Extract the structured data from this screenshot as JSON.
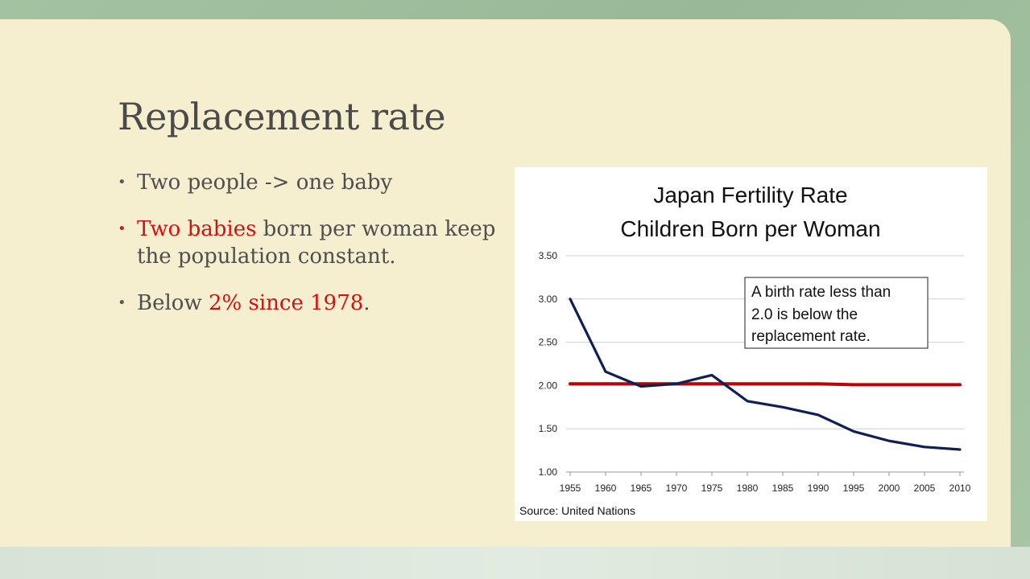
{
  "slide": {
    "title": "Replacement rate",
    "bullets": [
      {
        "parts": [
          {
            "text": "Two people -> one baby"
          }
        ]
      },
      {
        "parts": [
          {
            "text": "Two babies",
            "highlight": true
          },
          {
            "text": " born per woman keep the population constant."
          }
        ]
      },
      {
        "parts": [
          {
            "text": "Below "
          },
          {
            "text": "2% since 1978",
            "highlight": true
          },
          {
            "text": "."
          }
        ]
      }
    ],
    "highlight_color": "#d60f0f"
  },
  "chart_data": {
    "type": "line",
    "title_lines": [
      "Japan Fertility Rate",
      "Children Born per Woman"
    ],
    "x": [
      1955,
      1960,
      1965,
      1970,
      1975,
      1980,
      1985,
      1990,
      1995,
      2000,
      2005,
      2010
    ],
    "x_tick_labels": [
      "1955",
      "1960",
      "1965",
      "1970",
      "1975",
      "1980",
      "1985",
      "1990",
      "1995",
      "2000",
      "2005",
      "2010"
    ],
    "y_tick_labels": [
      "3.50",
      "3.00",
      "2.50",
      "2.00",
      "1.50",
      "1.00"
    ],
    "ylim": [
      1.0,
      3.5
    ],
    "grid": true,
    "series": [
      {
        "values": [
          3.0,
          2.16,
          1.99,
          2.02,
          2.12,
          1.82,
          1.75,
          1.66,
          1.47,
          1.36,
          1.29,
          1.26
        ],
        "color": "#0e1f55"
      },
      {
        "values": [
          2.02,
          2.02,
          2.02,
          2.02,
          2.02,
          2.02,
          2.02,
          2.02,
          2.01,
          2.01,
          2.01,
          2.01
        ],
        "color": "#c00000"
      }
    ],
    "annotation_lines": [
      "A birth rate less than",
      "2.0 is below the",
      "replacement rate."
    ],
    "source": "Source: United Nations"
  }
}
